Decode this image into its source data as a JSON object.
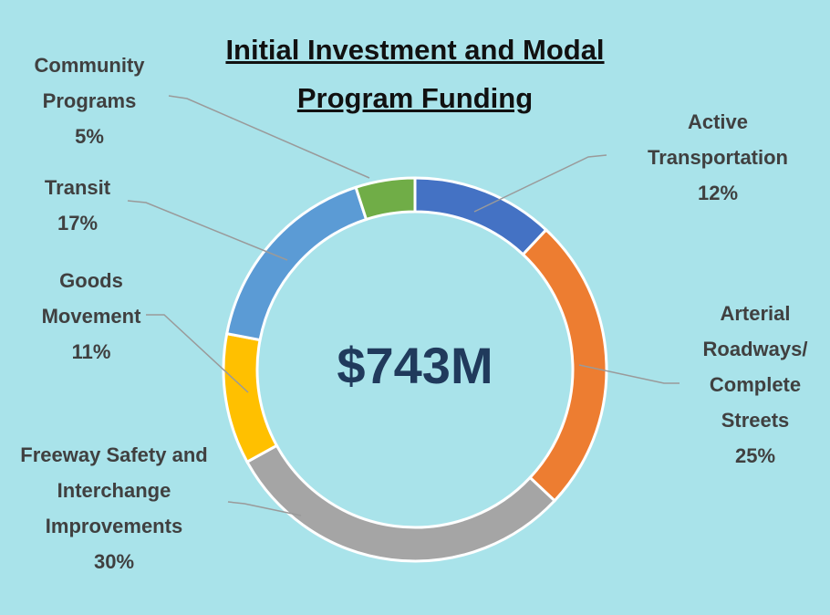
{
  "chart_data": {
    "type": "donut",
    "title": "Initial Investment and Modal Program Funding",
    "center_label": "$743M",
    "categories": [
      "Active Transportation",
      "Arterial Roadways/ Complete Streets",
      "Freeway Safety and Interchange Improvements",
      "Goods Movement",
      "Transit",
      "Community Programs"
    ],
    "values": [
      12,
      25,
      30,
      11,
      17,
      5
    ],
    "value_labels": [
      "12%",
      "25%",
      "30%",
      "11%",
      "17%",
      "5%"
    ],
    "colors": [
      "#4472c4",
      "#ed7d31",
      "#a5a5a5",
      "#ffc000",
      "#5b9bd5",
      "#70ad47"
    ]
  }
}
